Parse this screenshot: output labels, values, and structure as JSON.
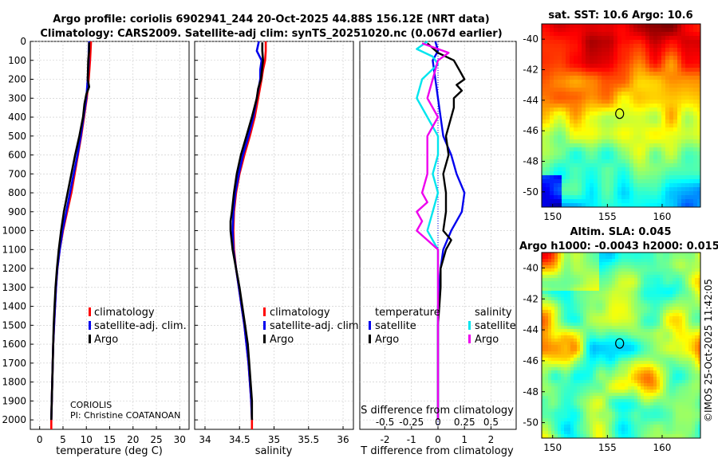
{
  "title": {
    "line1": "Argo profile: coriolis 6902941_244 20-Oct-2025 44.88S 156.12E (NRT data)",
    "line2": "Climatology: CARS2009. Satellite-adj clim: synTS_20251020.nc (0.067d earlier)"
  },
  "colors": {
    "climatology": "#ff0000",
    "satellite": "#0000ee",
    "argo": "#000000",
    "sat_diff_S": "#00e5ee",
    "argo_diff_S": "#ee00ee",
    "marker": "#000000"
  },
  "footer": {
    "institution": "CORIOLIS",
    "pi": "PI: Christine COATANOAN",
    "imos": "©IMOS 25-Oct-2025 11:42:05"
  },
  "legends": {
    "temp": [
      "climatology",
      "satellite-adj. clim.",
      "Argo"
    ],
    "sal": [
      "climatology",
      "satellite-adj. clim.",
      "Argo"
    ],
    "diff_t_header": "temperature",
    "diff_s_header": "salinity",
    "diff_t": [
      "satellite",
      "Argo"
    ],
    "diff_s": [
      "satellite",
      "Argo"
    ]
  },
  "chart_data": [
    {
      "id": "temperature",
      "type": "line",
      "xlabel": "temperature (deg C)",
      "ylabel": "",
      "xlim": [
        -2,
        32
      ],
      "ylim": [
        0,
        2050
      ],
      "y_reversed": true,
      "xticks": [
        0,
        5,
        10,
        15,
        20,
        25,
        30
      ],
      "yticks": [
        0,
        100,
        200,
        300,
        400,
        500,
        600,
        700,
        800,
        900,
        1000,
        1100,
        1200,
        1300,
        1400,
        1500,
        1600,
        1700,
        1800,
        1900,
        2000
      ],
      "grid": true,
      "series": [
        {
          "name": "climatology",
          "depth": [
            0,
            50,
            100,
            200,
            300,
            400,
            500,
            600,
            700,
            800,
            900,
            1000,
            1100,
            1200,
            1300,
            1400,
            1500,
            1600,
            1700,
            1800,
            1900,
            2000,
            2050
          ],
          "values": [
            11.0,
            10.9,
            10.8,
            10.5,
            10.1,
            9.5,
            8.9,
            8.2,
            7.5,
            6.8,
            5.9,
            5.0,
            4.3,
            3.8,
            3.5,
            3.3,
            3.1,
            2.9,
            2.8,
            2.7,
            2.6,
            2.5,
            2.5
          ]
        },
        {
          "name": "satellite-adj. clim.",
          "depth": [
            0,
            50,
            100,
            200,
            300,
            400,
            500,
            600,
            700,
            800,
            900,
            1000,
            1100,
            1200,
            1300,
            1400,
            1500,
            1600,
            1700,
            1800,
            1900,
            2000
          ],
          "values": [
            10.6,
            10.5,
            10.5,
            10.3,
            10.0,
            9.4,
            8.8,
            8.1,
            7.3,
            6.5,
            5.7,
            4.9,
            4.3,
            3.8,
            3.5,
            3.3,
            3.1,
            2.9,
            2.8,
            2.7,
            2.6,
            2.5
          ]
        },
        {
          "name": "Argo",
          "depth": [
            5,
            50,
            100,
            200,
            240,
            280,
            330,
            400,
            500,
            600,
            700,
            800,
            900,
            1000,
            1100,
            1200,
            1300,
            1400,
            1500,
            1600,
            1700,
            1800,
            1900,
            2000
          ],
          "values": [
            10.6,
            10.6,
            10.4,
            10.3,
            10.6,
            10.0,
            9.6,
            9.3,
            8.5,
            7.6,
            6.8,
            6.0,
            5.2,
            4.6,
            4.1,
            3.7,
            3.4,
            3.2,
            3.0,
            2.9,
            2.8,
            2.7,
            2.6,
            2.5
          ]
        }
      ]
    },
    {
      "id": "salinity",
      "type": "line",
      "xlabel": "salinity",
      "ylabel": "",
      "xlim": [
        33.85,
        36.15
      ],
      "ylim": [
        0,
        2050
      ],
      "y_reversed": true,
      "xticks": [
        34,
        34.5,
        35,
        35.5,
        36
      ],
      "tick_labels": [
        "34",
        "34.5",
        "35",
        "35.5",
        "36"
      ],
      "grid": true,
      "series": [
        {
          "name": "climatology",
          "depth": [
            0,
            50,
            100,
            150,
            200,
            300,
            400,
            500,
            600,
            700,
            800,
            900,
            1000,
            1100,
            1200,
            1300,
            1400,
            1500,
            1600,
            1700,
            1800,
            1900,
            2000,
            2050
          ],
          "values": [
            34.88,
            34.88,
            34.87,
            34.84,
            34.82,
            34.77,
            34.72,
            34.65,
            34.57,
            34.5,
            34.45,
            34.42,
            34.41,
            34.42,
            34.45,
            34.49,
            34.53,
            34.57,
            34.6,
            34.63,
            34.65,
            34.67,
            34.68,
            34.68
          ]
        },
        {
          "name": "satellite-adj. clim.",
          "depth": [
            0,
            50,
            100,
            150,
            200,
            300,
            400,
            500,
            600,
            700,
            800,
            900,
            1000,
            1100,
            1200,
            1300,
            1400,
            1500,
            1600,
            1700,
            1800,
            1900,
            2000
          ],
          "values": [
            34.78,
            34.75,
            34.82,
            34.8,
            34.8,
            34.75,
            34.7,
            34.63,
            34.55,
            34.49,
            34.44,
            34.41,
            34.4,
            34.41,
            34.45,
            34.49,
            34.53,
            34.57,
            34.6,
            34.63,
            34.65,
            34.67,
            34.68
          ]
        },
        {
          "name": "Argo",
          "depth": [
            5,
            50,
            100,
            200,
            250,
            300,
            400,
            500,
            600,
            700,
            800,
            900,
            950,
            1000,
            1100,
            1200,
            1300,
            1400,
            1500,
            1600,
            1700,
            1800,
            1900,
            2000
          ],
          "values": [
            34.83,
            34.83,
            34.84,
            34.81,
            34.77,
            34.75,
            34.68,
            34.6,
            34.52,
            34.46,
            34.42,
            34.39,
            34.37,
            34.37,
            34.4,
            34.45,
            34.5,
            34.54,
            34.58,
            34.62,
            34.64,
            34.66,
            34.68,
            34.68
          ]
        }
      ]
    },
    {
      "id": "difference",
      "type": "line",
      "xlabel": "T difference from climatology",
      "top_xlabel": "S difference from climatology",
      "xlim": [
        -2.95,
        2.95
      ],
      "ylim": [
        0,
        2050
      ],
      "y_reversed": true,
      "xticks": [
        -2,
        -1,
        0,
        1,
        2
      ],
      "tick_labels": [
        "-2",
        "-1",
        "0",
        "1",
        "2"
      ],
      "s_xticks": [
        -0.5,
        -0.25,
        0,
        0.25,
        0.5
      ],
      "s_tick_labels": [
        "-0.5",
        "-0.25",
        "0",
        "0.25",
        "0.5"
      ],
      "s_scale_per_T_unit": 0.25,
      "zero_line": "dotted",
      "grid": true,
      "series": [
        {
          "name": "T satellite",
          "depth": [
            0,
            50,
            100,
            200,
            300,
            400,
            500,
            600,
            700,
            800,
            900,
            1000,
            1100,
            1200,
            1400,
            1600,
            1800,
            2000
          ],
          "values": [
            -0.1,
            0.0,
            -0.2,
            -0.1,
            0.0,
            0.1,
            0.2,
            0.5,
            0.7,
            1.0,
            0.9,
            0.5,
            0.2,
            0.1,
            0.0,
            0.0,
            0.0,
            0.0
          ]
        },
        {
          "name": "T Argo",
          "depth": [
            10,
            60,
            100,
            150,
            200,
            230,
            260,
            300,
            350,
            400,
            450,
            500,
            600,
            700,
            800,
            900,
            1000,
            1050,
            1100,
            1200,
            1300,
            1400,
            1500,
            1600,
            1800,
            2000
          ],
          "values": [
            -0.4,
            0.0,
            0.6,
            0.8,
            1.0,
            0.7,
            0.9,
            0.6,
            0.6,
            0.5,
            0.4,
            0.3,
            0.4,
            0.2,
            0.3,
            0.3,
            0.2,
            0.5,
            0.3,
            0.1,
            0.1,
            0.05,
            0.0,
            0.0,
            0.0,
            0.0
          ]
        },
        {
          "name": "S satellite",
          "depth": [
            0,
            40,
            80,
            120,
            200,
            300,
            400,
            500,
            600,
            700,
            800,
            900,
            1000,
            1100,
            1200,
            1400,
            1600,
            1800,
            2000
          ],
          "values": [
            -0.1,
            -0.2,
            -0.05,
            0.0,
            -0.15,
            -0.2,
            -0.1,
            0.0,
            0.0,
            -0.05,
            0.0,
            -0.05,
            -0.1,
            0.0,
            0.0,
            0.0,
            0.0,
            0.0,
            0.0
          ]
        },
        {
          "name": "S Argo",
          "depth": [
            10,
            60,
            100,
            200,
            300,
            400,
            500,
            600,
            700,
            800,
            850,
            900,
            950,
            1000,
            1050,
            1100,
            1200,
            1300,
            1400,
            1600,
            1800,
            2000
          ],
          "values": [
            -0.15,
            0.1,
            0.0,
            -0.05,
            -0.1,
            0.0,
            -0.1,
            -0.1,
            -0.1,
            -0.15,
            -0.1,
            -0.2,
            -0.15,
            -0.2,
            -0.1,
            0.0,
            0.0,
            0.0,
            0.0,
            0.0,
            0.0,
            0.0
          ]
        }
      ]
    },
    {
      "id": "sst_map",
      "type": "heatmap",
      "title": "sat. SST: 10.6 Argo: 10.6",
      "xlim": [
        149,
        163.5
      ],
      "ylim": [
        -51,
        -39
      ],
      "xticks": [
        150,
        155,
        160
      ],
      "yticks": [
        -40,
        -42,
        -44,
        -46,
        -48,
        -50
      ],
      "marker": [
        156.12,
        -44.88
      ]
    },
    {
      "id": "sla_map",
      "type": "heatmap",
      "title": "Altim. SLA: 0.045",
      "subtitle": "Argo h1000: -0.0043 h2000: 0.015",
      "xlim": [
        149,
        163.5
      ],
      "ylim": [
        -51,
        -39
      ],
      "xticks": [
        150,
        155,
        160
      ],
      "yticks": [
        -40,
        -42,
        -44,
        -46,
        -48,
        -50
      ],
      "marker": [
        156.12,
        -44.88
      ]
    }
  ]
}
